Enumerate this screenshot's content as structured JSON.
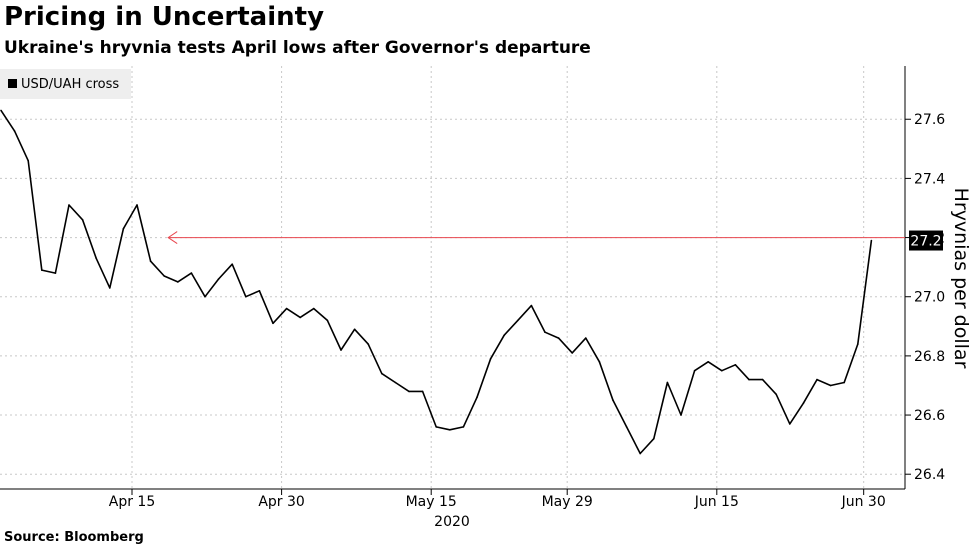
{
  "chart_data": {
    "type": "line",
    "title": "Pricing in Uncertainty",
    "subtitle": "Ukraine's hryvnia tests April lows after Governor's departure",
    "source": "Source: Bloomberg",
    "ylabel": "Hryvnias per dollar",
    "xlabel": "",
    "year_label": "2020",
    "legend": "top-left",
    "grid": true,
    "ylim": [
      26.35,
      27.78
    ],
    "yticks": [
      26.4,
      26.6,
      26.8,
      27.0,
      27.2,
      27.4,
      27.6
    ],
    "ytick_labels": [
      "26.4",
      "26.6",
      "26.8",
      "27.0",
      "27.2",
      "27.4",
      "27.6"
    ],
    "xlim": [
      0,
      64
    ],
    "xticks": [
      {
        "label": "Apr 15",
        "x": 10
      },
      {
        "label": "Apr 30",
        "x": 21
      },
      {
        "label": "May 15",
        "x": 32
      },
      {
        "label": "May 29",
        "x": 42
      },
      {
        "label": "Jun 15",
        "x": 53
      },
      {
        "label": "Jun 30",
        "x": 63.8
      }
    ],
    "last_value_label": "27.2",
    "reference_line": {
      "value": 27.2,
      "x_start": 12,
      "x_end": 66,
      "color": "#e8474f",
      "note": "April-low level arrow"
    },
    "series": [
      {
        "name": "USD/UAH cross",
        "color": "#000000",
        "values": [
          27.63,
          27.56,
          27.46,
          27.09,
          27.08,
          27.31,
          27.26,
          27.13,
          27.03,
          27.23,
          27.31,
          27.12,
          27.07,
          27.05,
          27.08,
          27.0,
          27.06,
          27.11,
          27.0,
          27.02,
          26.91,
          26.96,
          26.93,
          26.96,
          26.92,
          26.82,
          26.89,
          26.84,
          26.74,
          26.71,
          26.68,
          26.68,
          26.56,
          26.55,
          26.56,
          26.66,
          26.79,
          26.87,
          26.92,
          26.97,
          26.88,
          26.86,
          26.81,
          26.86,
          26.78,
          26.65,
          26.56,
          26.47,
          26.52,
          26.71,
          26.6,
          26.75,
          26.78,
          26.75,
          26.77,
          26.72,
          26.72,
          26.67,
          26.57,
          26.64,
          26.72,
          26.7,
          26.71,
          26.84,
          27.19
        ]
      }
    ]
  }
}
